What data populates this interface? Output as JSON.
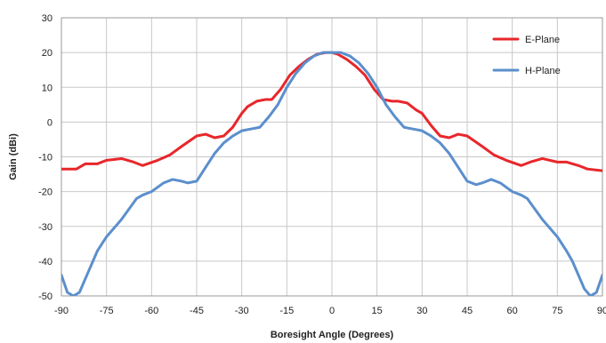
{
  "chart_data": {
    "type": "line",
    "xlabel": "Boresight Angle (Degrees)",
    "ylabel": "Gain (dBi)",
    "xlim": [
      -90,
      90
    ],
    "ylim": [
      -50,
      30
    ],
    "xticks": [
      -90,
      -75,
      -60,
      -45,
      -30,
      -15,
      0,
      15,
      30,
      45,
      60,
      75,
      90
    ],
    "yticks": [
      -50,
      -40,
      -30,
      -20,
      -10,
      0,
      10,
      20,
      30
    ],
    "x_tick_labels": [
      "-90",
      "-75",
      "-60",
      "-45",
      "-30",
      "-15",
      "0",
      "15",
      "30",
      "45",
      "60",
      "75",
      "90"
    ],
    "y_tick_labels": [
      "-50",
      "-40",
      "-30",
      "-20",
      "-10",
      "0",
      "10",
      "20",
      "30"
    ],
    "grid": true,
    "legend_position": "top-right",
    "series": [
      {
        "name": "E-Plane",
        "color": "#e8262a",
        "x": [
          -90,
          -85,
          -82,
          -78,
          -75,
          -70,
          -66,
          -63,
          -58,
          -54,
          -50,
          -45,
          -42,
          -39,
          -36,
          -33,
          -30,
          -28,
          -25,
          -22,
          -20,
          -17,
          -14,
          -11,
          -8,
          -5,
          -2,
          0,
          2,
          5,
          8,
          11,
          14,
          17,
          20,
          22,
          25,
          28,
          30,
          33,
          36,
          39,
          42,
          45,
          50,
          54,
          58,
          63,
          66,
          70,
          75,
          78,
          82,
          85,
          90
        ],
        "y": [
          -13.5,
          -13.5,
          -12,
          -12,
          -11,
          -10.5,
          -11.5,
          -12.5,
          -11,
          -9.5,
          -7,
          -4,
          -3.5,
          -4.5,
          -4,
          -1.5,
          2.5,
          4.5,
          6,
          6.5,
          6.5,
          9.5,
          13.5,
          16,
          18,
          19.5,
          20,
          20,
          19.5,
          18,
          16,
          13.5,
          9.5,
          6.5,
          6,
          6,
          5.5,
          3.5,
          2.5,
          -1,
          -4,
          -4.5,
          -3.5,
          -4,
          -7,
          -9.5,
          -11,
          -12.5,
          -11.5,
          -10.5,
          -11.5,
          -11.5,
          -12.5,
          -13.5,
          -14
        ]
      },
      {
        "name": "H-Plane",
        "color": "#5b8fcc",
        "x": [
          -90,
          -88,
          -86,
          -84,
          -83,
          -82,
          -78,
          -75,
          -70,
          -65,
          -63,
          -60,
          -56,
          -53,
          -50,
          -48,
          -45,
          -42,
          -39,
          -36,
          -33,
          -30,
          -27,
          -24,
          -21,
          -18,
          -15,
          -12,
          -9,
          -6,
          -3,
          0,
          3,
          6,
          9,
          12,
          15,
          18,
          21,
          24,
          27,
          30,
          33,
          36,
          39,
          42,
          45,
          48,
          50,
          53,
          56,
          60,
          63,
          65,
          70,
          75,
          78,
          80,
          82,
          84,
          86,
          88,
          90
        ],
        "y": [
          -44,
          -49,
          -50,
          -49,
          -47,
          -45,
          -37,
          -33,
          -28,
          -22,
          -21,
          -20,
          -17.5,
          -16.5,
          -17,
          -17.5,
          -17,
          -13,
          -9,
          -6,
          -4,
          -2.5,
          -2,
          -1.5,
          1.5,
          5,
          10,
          14,
          17,
          19,
          20,
          20,
          20,
          19,
          17,
          14,
          10,
          5,
          1.5,
          -1.5,
          -2,
          -2.5,
          -4,
          -6,
          -9,
          -13,
          -17,
          -18,
          -17.5,
          -16.5,
          -17.5,
          -20,
          -21,
          -22,
          -28,
          -33,
          -37,
          -40,
          -44,
          -48,
          -50,
          -49,
          -44
        ]
      }
    ]
  }
}
